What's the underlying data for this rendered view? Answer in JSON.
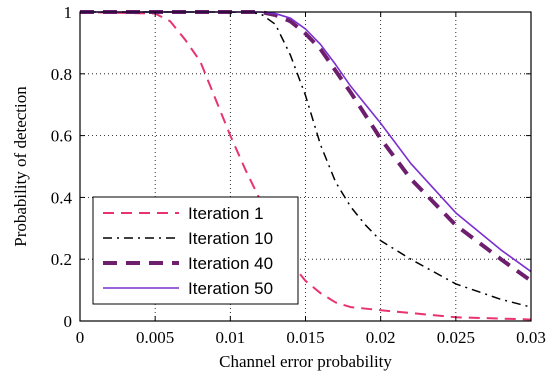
{
  "chart_data": {
    "type": "line",
    "title": "",
    "xlabel": "Channel error probability",
    "ylabel": "Probability of detection",
    "xlim": [
      0,
      0.03
    ],
    "ylim": [
      0,
      1
    ],
    "xticks": [
      0,
      0.005,
      0.01,
      0.015,
      0.02,
      0.025,
      0.03
    ],
    "xtick_labels": [
      "0",
      "0.005",
      "0.01",
      "0.015",
      "0.02",
      "0.025",
      "0.03"
    ],
    "yticks": [
      0,
      0.2,
      0.4,
      0.6,
      0.8,
      1
    ],
    "ytick_labels": [
      "0",
      "0.2",
      "0.4",
      "0.6",
      "0.8",
      "1"
    ],
    "grid": true,
    "legend_position": "bottom-left",
    "series": [
      {
        "name": "Iteration 1",
        "color": "#e8336f",
        "style": "dashed",
        "width": 2,
        "x": [
          0,
          0.005,
          0.006,
          0.007,
          0.008,
          0.009,
          0.01,
          0.011,
          0.012,
          0.013,
          0.014,
          0.015,
          0.016,
          0.017,
          0.018,
          0.02,
          0.025,
          0.03
        ],
        "y": [
          1,
          0.995,
          0.97,
          0.91,
          0.84,
          0.72,
          0.6,
          0.49,
          0.39,
          0.28,
          0.19,
          0.13,
          0.09,
          0.06,
          0.045,
          0.035,
          0.012,
          0.005
        ]
      },
      {
        "name": "Iteration 10",
        "color": "#000000",
        "style": "dashdot",
        "width": 1.5,
        "x": [
          0,
          0.005,
          0.01,
          0.012,
          0.013,
          0.014,
          0.015,
          0.016,
          0.017,
          0.018,
          0.019,
          0.02,
          0.022,
          0.025,
          0.028,
          0.03
        ],
        "y": [
          1,
          1,
          1,
          0.995,
          0.96,
          0.86,
          0.73,
          0.57,
          0.45,
          0.37,
          0.31,
          0.26,
          0.2,
          0.12,
          0.07,
          0.045
        ]
      },
      {
        "name": "Iteration 40",
        "color": "#6d1f6d",
        "style": "dashed",
        "width": 4,
        "x": [
          0,
          0.005,
          0.01,
          0.012,
          0.013,
          0.014,
          0.015,
          0.016,
          0.017,
          0.018,
          0.02,
          0.022,
          0.025,
          0.028,
          0.03
        ],
        "y": [
          1,
          1,
          1,
          1,
          0.99,
          0.97,
          0.93,
          0.88,
          0.81,
          0.74,
          0.59,
          0.46,
          0.31,
          0.2,
          0.13
        ]
      },
      {
        "name": "Iteration 50",
        "color": "#7b2fd0",
        "style": "solid",
        "width": 1.6,
        "x": [
          0,
          0.005,
          0.01,
          0.012,
          0.013,
          0.014,
          0.015,
          0.016,
          0.017,
          0.018,
          0.02,
          0.022,
          0.025,
          0.028,
          0.03
        ],
        "y": [
          1,
          1,
          1,
          1,
          0.995,
          0.98,
          0.945,
          0.895,
          0.83,
          0.76,
          0.64,
          0.51,
          0.35,
          0.23,
          0.16
        ]
      }
    ]
  }
}
